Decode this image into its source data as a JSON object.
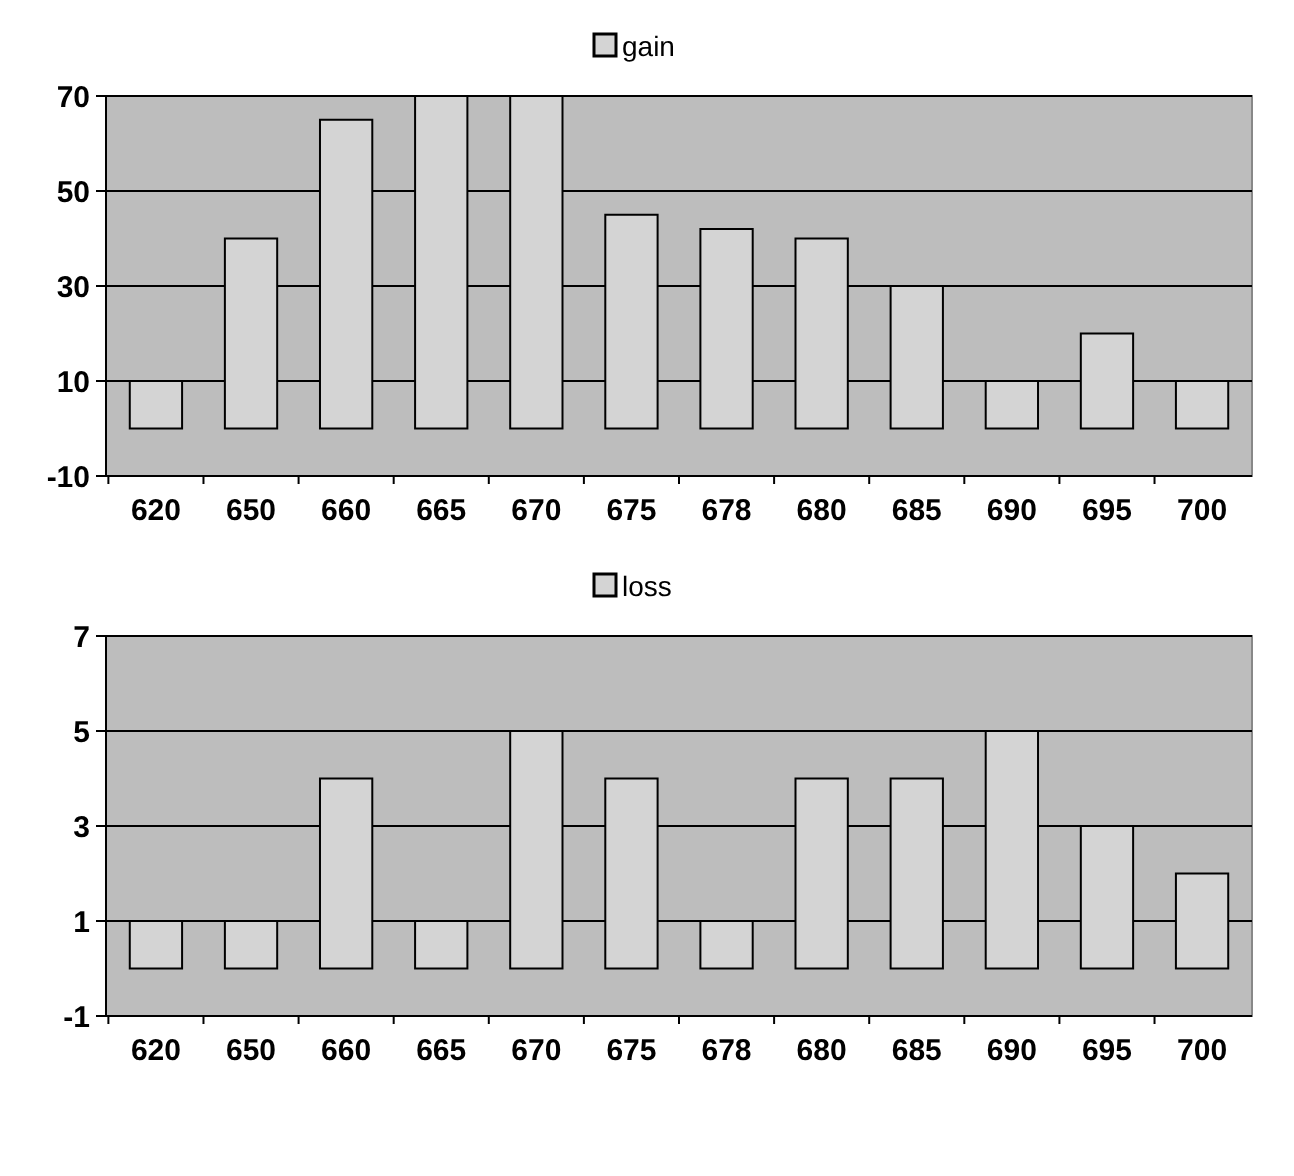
{
  "chart_data": [
    {
      "type": "bar",
      "categories": [
        "620",
        "650",
        "660",
        "665",
        "670",
        "675",
        "678",
        "680",
        "685",
        "690",
        "695",
        "700"
      ],
      "series": [
        {
          "name": "gain",
          "color": "#d4d4d4",
          "values": [
            10,
            40,
            65,
            70,
            70,
            45,
            42,
            40,
            30,
            10,
            20,
            10
          ]
        }
      ],
      "ylim": [
        -10,
        70
      ],
      "yticks": [
        -10,
        10,
        30,
        50,
        70
      ],
      "grid": "y",
      "legend": "top"
    },
    {
      "type": "bar",
      "categories": [
        "620",
        "650",
        "660",
        "665",
        "670",
        "675",
        "678",
        "680",
        "685",
        "690",
        "695",
        "700"
      ],
      "series": [
        {
          "name": "loss",
          "color": "#d4d4d4",
          "values": [
            1,
            1,
            4,
            1,
            5,
            4,
            1,
            4,
            4,
            5,
            3,
            2
          ]
        }
      ],
      "ylim": [
        -1,
        7
      ],
      "yticks": [
        -1,
        1,
        3,
        5,
        7
      ],
      "grid": "y",
      "legend": "top"
    }
  ]
}
